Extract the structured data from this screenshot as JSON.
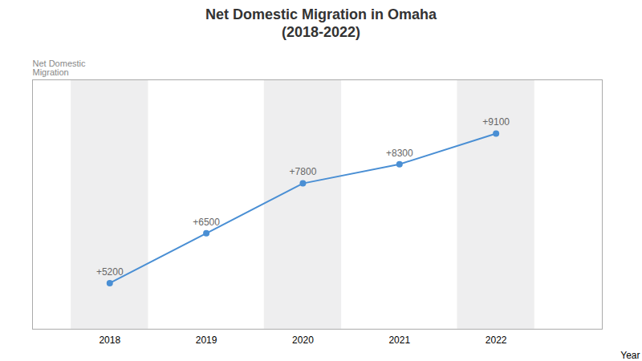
{
  "chart_data": {
    "type": "line",
    "title": "Net Domestic Migration in Omaha\n(2018-2022)",
    "x": [
      2018,
      2019,
      2020,
      2021,
      2022
    ],
    "values": [
      5200,
      6500,
      7800,
      8300,
      9100
    ],
    "value_labels": [
      "+5200",
      "+6500",
      "+7800",
      "+8300",
      "+9100"
    ],
    "data_labels": true,
    "color": "#4a8fd4",
    "marker": "circle",
    "xlabel": "Year",
    "ylabel": "Net Domestic\nMigration",
    "xlim": [
      2017.2,
      2023.1
    ],
    "xticks": [
      2018,
      2019,
      2020,
      2021,
      2022
    ],
    "ylim": [
      4000,
      10500
    ],
    "yticks": [],
    "tick_labels": "x",
    "grid": false
  }
}
